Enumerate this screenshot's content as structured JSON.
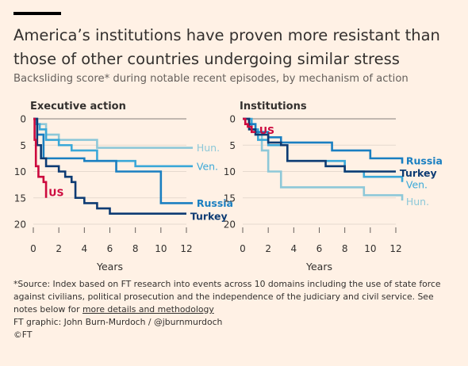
{
  "title_line1": "America’s institutions have proven more resistant than",
  "title_line2": "those of other countries undergoing similar stress",
  "subtitle": "Backsliding score* during notable recent episodes, by mechanism of action",
  "footnote": {
    "line1": "*Source: Index based on FT research into events across 10 domains including the use of state force",
    "line2": "against civilians, political prosecution and the independence of the judiciary and civil service. See",
    "line3_prefix": "notes below for ",
    "line3_link": "more details and methodology",
    "credit": "FT graphic: John Burn-Murdoch / @jburnmurdoch",
    "copyright": "©FT"
  },
  "colors": {
    "US": "#cc0a3e",
    "Turkey": "#0d3b73",
    "Russia": "#1a7fc1",
    "Ven.": "#3aa8d8",
    "Hun.": "#8dc8d8",
    "axis": "#66605c",
    "grid": "#e6d9ce"
  },
  "chart_data": [
    {
      "type": "line",
      "title": "Executive action",
      "xlabel": "Years",
      "ylabel": "",
      "xlim": [
        0,
        12
      ],
      "ylim": [
        0,
        20
      ],
      "y_inverted": true,
      "xticks": [
        0,
        2,
        4,
        6,
        8,
        10,
        12
      ],
      "yticks": [
        0,
        5,
        10,
        15,
        20
      ],
      "series": [
        {
          "name": "Hun.",
          "step": true,
          "x": [
            0,
            0.3,
            0.8,
            1.0,
            1.5,
            2.0,
            4.0,
            5.0,
            12.5
          ],
          "y": [
            0,
            1,
            1,
            3,
            3,
            4,
            4,
            5.5,
            5.5
          ]
        },
        {
          "name": "Ven.",
          "step": true,
          "x": [
            0,
            0.2,
            0.5,
            1.0,
            2.0,
            3.0,
            5.0,
            8.0,
            12.5
          ],
          "y": [
            0,
            1,
            2,
            4,
            5,
            6,
            8,
            9,
            9
          ]
        },
        {
          "name": "Russia",
          "step": true,
          "x": [
            0,
            0.3,
            0.8,
            3.5,
            4.0,
            6.0,
            6.5,
            9.5,
            10.0,
            12.5
          ],
          "y": [
            0,
            3,
            7.5,
            7.5,
            8,
            8,
            10,
            10,
            16,
            16
          ]
        },
        {
          "name": "Turkey",
          "step": true,
          "x": [
            0,
            0.3,
            0.6,
            1.0,
            2.0,
            2.5,
            3.0,
            3.3,
            4.0,
            5.0,
            6.0,
            7.0,
            12.0
          ],
          "y": [
            0,
            5,
            7.5,
            9,
            10,
            11,
            12,
            15,
            16,
            17,
            18,
            18,
            18
          ]
        },
        {
          "name": "US",
          "step": true,
          "x": [
            0,
            0.1,
            0.2,
            0.4,
            0.8,
            1.0
          ],
          "y": [
            0,
            4,
            9,
            11,
            12,
            15
          ]
        }
      ],
      "labels": [
        {
          "text": "Hun.",
          "series": "Hun.",
          "x": 12.8,
          "y": 5.5
        },
        {
          "text": "Ven.",
          "series": "Ven.",
          "x": 12.8,
          "y": 9
        },
        {
          "text": "Russia",
          "series": "Russia",
          "x": 12.8,
          "y": 16
        },
        {
          "text": "Turkey",
          "series": "Turkey",
          "x": 12.3,
          "y": 18.5
        },
        {
          "text": "US",
          "series": "US",
          "x": 1.2,
          "y": 14
        }
      ]
    },
    {
      "type": "line",
      "title": "Institutions",
      "xlabel": "Years",
      "ylabel": "",
      "xlim": [
        0,
        12
      ],
      "ylim": [
        0,
        20
      ],
      "y_inverted": true,
      "xticks": [
        0,
        2,
        4,
        6,
        8,
        10,
        12
      ],
      "yticks": [
        0,
        5,
        10,
        15,
        20
      ],
      "series": [
        {
          "name": "Hun.",
          "step": true,
          "x": [
            0,
            0.5,
            1.0,
            1.5,
            2.0,
            3.0,
            8.0,
            9.5,
            12.5
          ],
          "y": [
            0,
            1,
            3,
            6,
            10,
            13,
            13,
            14.5,
            15.5
          ]
        },
        {
          "name": "Ven.",
          "step": true,
          "x": [
            0,
            0.7,
            1.2,
            2.0,
            3.5,
            6.0,
            8.0,
            9.5,
            12.5
          ],
          "y": [
            0,
            2,
            4,
            5,
            8,
            8,
            10,
            11,
            12
          ]
        },
        {
          "name": "Russia",
          "step": true,
          "x": [
            0,
            0.5,
            1.0,
            2.0,
            3.0,
            4.5,
            7.0,
            9.0,
            10.0,
            12.5
          ],
          "y": [
            0,
            1,
            2.5,
            3.5,
            4.5,
            4.5,
            6,
            6,
            7.5,
            8.5
          ]
        },
        {
          "name": "Turkey",
          "step": true,
          "x": [
            0,
            0.5,
            1.0,
            2.0,
            3.0,
            3.5,
            6.0,
            6.5,
            8.0,
            10.0,
            11.0,
            12.0
          ],
          "y": [
            0,
            2,
            3,
            4.5,
            5,
            8,
            8,
            9,
            10,
            10,
            10,
            10
          ]
        },
        {
          "name": "US",
          "step": true,
          "x": [
            0,
            0.2,
            0.4,
            0.7,
            1.0
          ],
          "y": [
            0,
            1,
            1.5,
            2.5,
            2.5
          ]
        }
      ],
      "labels": [
        {
          "text": "Russia",
          "series": "Russia",
          "x": 12.8,
          "y": 8
        },
        {
          "text": "Turkey",
          "series": "Turkey",
          "x": 12.3,
          "y": 10.3
        },
        {
          "text": "Ven.",
          "series": "Ven.",
          "x": 12.8,
          "y": 12.5
        },
        {
          "text": "Hun.",
          "series": "Hun.",
          "x": 12.8,
          "y": 15.7
        },
        {
          "text": "US",
          "series": "US",
          "x": 1.3,
          "y": 2.2
        }
      ]
    }
  ]
}
